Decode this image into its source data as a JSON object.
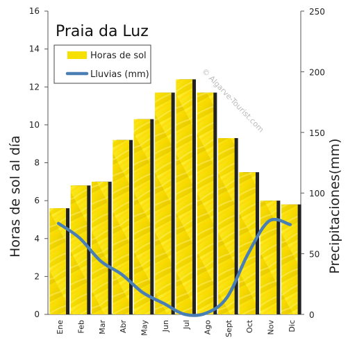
{
  "chart_data": {
    "type": "bar",
    "title": "Praia da Luz",
    "watermark": "© Algarve-Tourist.com",
    "categories": [
      "Ene",
      "Feb",
      "Mar",
      "Abr",
      "May",
      "Jun",
      "Jul",
      "Ago",
      "Sept",
      "Oct",
      "Nov",
      "Dic"
    ],
    "series": [
      {
        "name": "Horas de sol",
        "type": "bar",
        "axis": "left",
        "color": "#f5e000",
        "values": [
          5.6,
          6.8,
          7.0,
          9.2,
          10.3,
          11.7,
          12.4,
          11.7,
          9.3,
          7.5,
          6.0,
          5.8
        ]
      },
      {
        "name": "Lluvias (mm)",
        "type": "line",
        "axis": "right",
        "color": "#4a7fb5",
        "values": [
          75,
          63,
          44,
          33,
          18,
          9,
          0,
          1,
          14,
          50,
          77,
          74
        ]
      }
    ],
    "ylabel": "Horas de sol al día",
    "y2label": "Precipitaciones(mm)",
    "ylim": [
      0,
      16
    ],
    "y2lim": [
      0,
      250
    ],
    "yticks": [
      0,
      2,
      4,
      6,
      8,
      10,
      12,
      14,
      16
    ],
    "y2ticks": [
      0,
      50,
      100,
      150,
      200,
      250
    ],
    "grid": false,
    "legend": "top-left"
  }
}
